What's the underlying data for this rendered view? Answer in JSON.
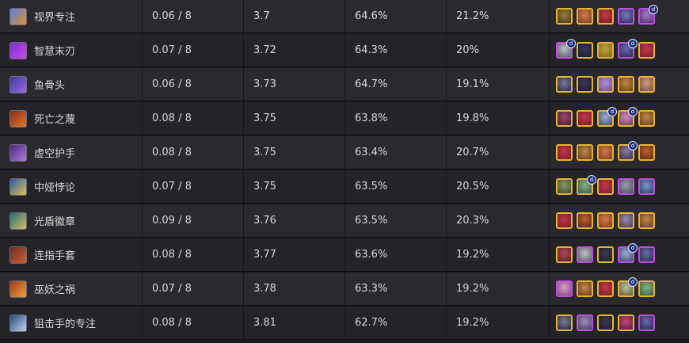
{
  "rows": [
    {
      "name": "视界专注",
      "a": "0.06 / 8",
      "b": "3.7",
      "c": "64.6%",
      "d": "21.2%",
      "icon": {
        "name": "item-visionary-focus-icon",
        "colors": [
          "#5a80e0",
          "#e0902a"
        ]
      },
      "units": [
        {
          "t": "g",
          "c": [
            "#4a3a1a",
            "#9a7a3a"
          ]
        },
        {
          "t": "g",
          "c": [
            "#7a3a2a",
            "#d67a4a"
          ]
        },
        {
          "t": "g",
          "c": [
            "#7a1a2a",
            "#c03a4a"
          ]
        },
        {
          "t": "p",
          "c": [
            "#2a2a5a",
            "#7a7ac0"
          ]
        },
        {
          "t": "p",
          "c": [
            "#5a2a6a",
            "#a07ad0"
          ],
          "badge": "d"
        }
      ]
    },
    {
      "name": "智慧末刃",
      "a": "0.07 / 8",
      "b": "3.72",
      "c": "64.3%",
      "d": "20%",
      "icon": {
        "name": "item-guinsoo-blade-icon",
        "colors": [
          "#7a2ad0",
          "#c94ee8"
        ]
      },
      "units": [
        {
          "t": "p",
          "c": [
            "#5a5a6a",
            "#c0c0c8"
          ],
          "badge": "d"
        },
        {
          "t": "g",
          "c": [
            "#1a1a2a",
            "#3a3a5a"
          ]
        },
        {
          "t": "g",
          "c": [
            "#7a6a1a",
            "#c0a040"
          ]
        },
        {
          "t": "p",
          "c": [
            "#2a2a4a",
            "#6a6ab0"
          ],
          "badge": "d"
        },
        {
          "t": "g",
          "c": [
            "#7a1a2a",
            "#c03a4a"
          ]
        }
      ]
    },
    {
      "name": "鱼骨头",
      "a": "0.06 / 8",
      "b": "3.73",
      "c": "64.7%",
      "d": "19.1%",
      "icon": {
        "name": "item-fishbones-icon",
        "colors": [
          "#3a3aa0",
          "#a06ae0"
        ]
      },
      "units": [
        {
          "t": "g",
          "c": [
            "#2a2a3a",
            "#7a7a9a"
          ]
        },
        {
          "t": "g",
          "c": [
            "#1a1a2a",
            "#3a3a5a"
          ]
        },
        {
          "t": "g",
          "c": [
            "#6a4a9a",
            "#b090e0"
          ]
        },
        {
          "t": "g",
          "c": [
            "#6a3a1a",
            "#c08a4a"
          ]
        },
        {
          "t": "g",
          "c": [
            "#7a4a3a",
            "#d0a07a"
          ]
        }
      ]
    },
    {
      "name": "死亡之蔑",
      "a": "0.08 / 8",
      "b": "3.75",
      "c": "63.8%",
      "d": "19.8%",
      "icon": {
        "name": "item-deaths-defiance-icon",
        "colors": [
          "#8a2a1a",
          "#e07a2a"
        ]
      },
      "units": [
        {
          "t": "g",
          "c": [
            "#3a1a3a",
            "#a04a6a"
          ]
        },
        {
          "t": "g",
          "c": [
            "#7a1a2a",
            "#c03a4a"
          ]
        },
        {
          "t": "g",
          "c": [
            "#3a4a6a",
            "#9ab0d0"
          ],
          "badge": "d"
        },
        {
          "t": "g",
          "c": [
            "#6a3a5a",
            "#d090b0"
          ],
          "badge": "d"
        },
        {
          "t": "g",
          "c": [
            "#6a3a1a",
            "#c08a4a"
          ]
        }
      ]
    },
    {
      "name": "虚空护手",
      "a": "0.08 / 8",
      "b": "3.75",
      "c": "63.4%",
      "d": "20.7%",
      "icon": {
        "name": "item-void-gauntlet-icon",
        "colors": [
          "#4a2a7a",
          "#b07ae0"
        ]
      },
      "units": [
        {
          "t": "g",
          "c": [
            "#7a1a2a",
            "#c03a4a"
          ]
        },
        {
          "t": "g",
          "c": [
            "#6a3a1a",
            "#c08a4a"
          ]
        },
        {
          "t": "g",
          "c": [
            "#7a3a2a",
            "#d67a4a"
          ]
        },
        {
          "t": "g",
          "c": [
            "#3a2a4a",
            "#8a7aa0"
          ],
          "badge": "d"
        },
        {
          "t": "g",
          "c": [
            "#5a2a1a",
            "#c0602a"
          ]
        }
      ]
    },
    {
      "name": "中娅悖论",
      "a": "0.07 / 8",
      "b": "3.75",
      "c": "63.5%",
      "d": "20.5%",
      "icon": {
        "name": "item-zhonyas-paradox-icon",
        "colors": [
          "#2a5ab0",
          "#e0c04a"
        ]
      },
      "units": [
        {
          "t": "g",
          "c": [
            "#3a4a2a",
            "#8a9a6a"
          ]
        },
        {
          "t": "g",
          "c": [
            "#3a5a3a",
            "#8ab08a"
          ],
          "badge": "d"
        },
        {
          "t": "g",
          "c": [
            "#7a1a2a",
            "#c03a4a"
          ]
        },
        {
          "t": "p",
          "c": [
            "#4a4a5a",
            "#a0a0b0"
          ]
        },
        {
          "t": "p",
          "c": [
            "#2a3a6a",
            "#7a9ad0"
          ]
        }
      ]
    },
    {
      "name": "光盾徽章",
      "a": "0.09 / 8",
      "b": "3.76",
      "c": "63.5%",
      "d": "20.3%",
      "icon": {
        "name": "item-radiant-shield-icon",
        "colors": [
          "#2a6a6a",
          "#d0c06a"
        ]
      },
      "units": [
        {
          "t": "g",
          "c": [
            "#7a1a2a",
            "#c03a4a"
          ]
        },
        {
          "t": "g",
          "c": [
            "#5a2a1a",
            "#c0602a"
          ]
        },
        {
          "t": "g",
          "c": [
            "#7a3a2a",
            "#d67a4a"
          ]
        },
        {
          "t": "g",
          "c": [
            "#4a3a5a",
            "#9a8ab0"
          ]
        },
        {
          "t": "g",
          "c": [
            "#6a3a1a",
            "#c08a4a"
          ]
        }
      ]
    },
    {
      "name": "连指手套",
      "a": "0.08 / 8",
      "b": "3.77",
      "c": "63.6%",
      "d": "19.2%",
      "icon": {
        "name": "item-thiefs-gloves-icon",
        "colors": [
          "#6a2a1a",
          "#d0603a"
        ]
      },
      "units": [
        {
          "t": "g",
          "c": [
            "#5a1a2a",
            "#b04a5a"
          ]
        },
        {
          "t": "p",
          "c": [
            "#5a5a6a",
            "#c0c0c8"
          ]
        },
        {
          "t": "g",
          "c": [
            "#1a1a2a",
            "#3a3a5a"
          ]
        },
        {
          "t": "p",
          "c": [
            "#3a4a6a",
            "#9ab0d0"
          ],
          "badge": "d"
        },
        {
          "t": "p",
          "c": [
            "#2a2a4a",
            "#6a6ab0"
          ]
        }
      ]
    },
    {
      "name": "巫妖之祸",
      "a": "0.07 / 8",
      "b": "3.78",
      "c": "63.3%",
      "d": "19.2%",
      "icon": {
        "name": "item-lich-bane-icon",
        "colors": [
          "#a03a1a",
          "#f0a03a"
        ]
      },
      "units": [
        {
          "t": "p",
          "c": [
            "#7a4a7a",
            "#e0a0d0"
          ]
        },
        {
          "t": "g",
          "c": [
            "#6a3a1a",
            "#c08a4a"
          ]
        },
        {
          "t": "g",
          "c": [
            "#7a1a2a",
            "#c03a4a"
          ]
        },
        {
          "t": "g",
          "c": [
            "#5a5a3a",
            "#c0c09a"
          ],
          "badge": "d"
        },
        {
          "t": "g",
          "c": [
            "#3a5a3a",
            "#8ab08a"
          ]
        }
      ]
    },
    {
      "name": "狙击手的专注",
      "a": "0.08 / 8",
      "b": "3.81",
      "c": "62.7%",
      "d": "19.2%",
      "icon": {
        "name": "item-sniper-focus-icon",
        "colors": [
          "#2a4a7a",
          "#c0d0f0"
        ]
      },
      "units": [
        {
          "t": "g",
          "c": [
            "#2a2a3a",
            "#7a7a9a"
          ]
        },
        {
          "t": "p",
          "c": [
            "#4a3a6a",
            "#a090c0"
          ]
        },
        {
          "t": "g",
          "c": [
            "#1a1a2a",
            "#3a3a5a"
          ]
        },
        {
          "t": "g",
          "c": [
            "#5a1a3a",
            "#c04a7a"
          ]
        },
        {
          "t": "p",
          "c": [
            "#2a2a4a",
            "#6a6ab0"
          ]
        }
      ]
    }
  ]
}
